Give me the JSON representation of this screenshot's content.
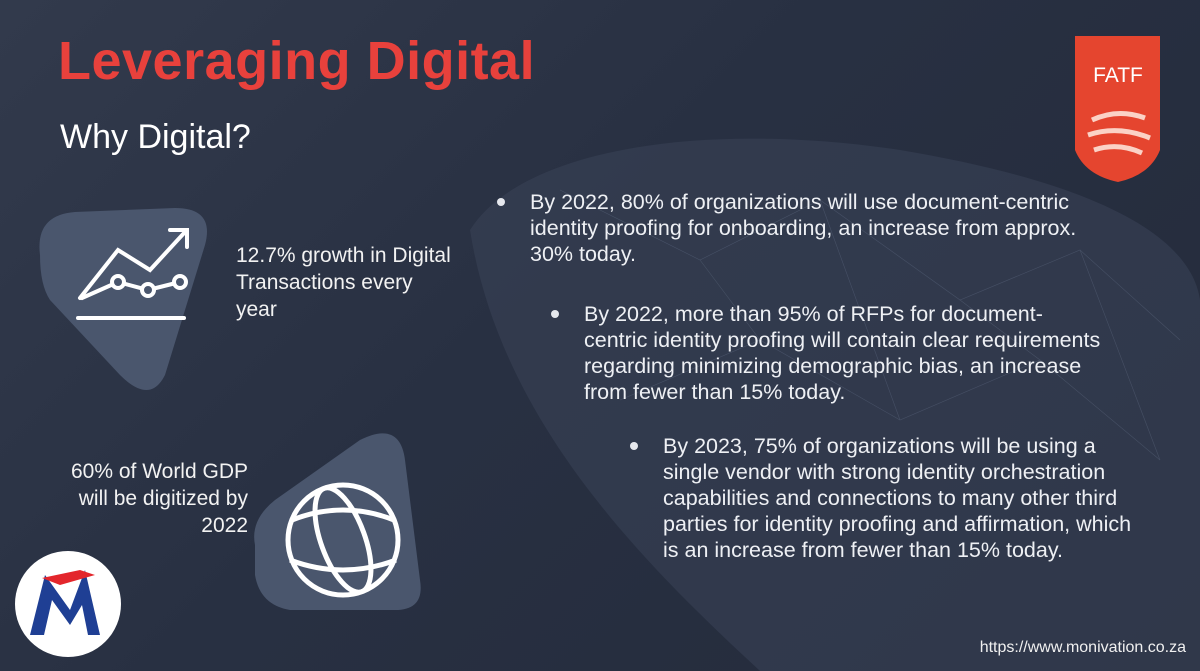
{
  "header": {
    "title": "Leveraging Digital",
    "subtitle": "Why Digital?"
  },
  "stats": [
    "12.7% growth in Digital Transactions every year",
    "60% of World GDP will be digitized by 2022"
  ],
  "bullets": [
    "By 2022, 80% of organizations will use document-centric identity proofing for onboarding, an increase from approx. 30% today.",
    "By 2022, more than 95% of RFPs for document-centric identity proofing will contain clear requirements regarding minimizing demographic bias, an increase from fewer than 15% today.",
    "By 2023, 75% of organizations will be using a single vendor with strong identity orchestration capabilities and connections to many other third parties for identity proofing and affirmation, which is an increase from fewer than 15% today."
  ],
  "logo": "FATF",
  "url": "https://www.monivation.co.za"
}
